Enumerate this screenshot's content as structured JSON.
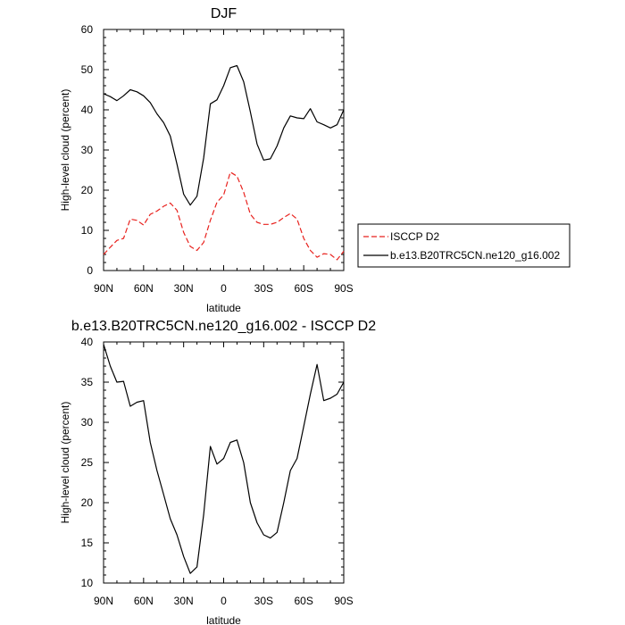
{
  "chart_data": [
    {
      "type": "line",
      "title": "DJF",
      "xlabel": "latitude",
      "ylabel": "High-level cloud (percent)",
      "xlim": [
        90,
        -90
      ],
      "ylim": [
        0,
        60
      ],
      "x_ticks": [
        90,
        60,
        30,
        0,
        -30,
        -60,
        -90
      ],
      "x_tick_labels": [
        "90N",
        "60N",
        "30N",
        "0",
        "30S",
        "60S",
        "90S"
      ],
      "y_ticks": [
        0,
        10,
        20,
        30,
        40,
        50,
        60
      ],
      "y_tick_labels": [
        "0",
        "10",
        "20",
        "30",
        "40",
        "50",
        "60"
      ],
      "grid": false,
      "legend_position": "outside-right",
      "series": [
        {
          "name": "ISCCP D2",
          "color": "#e8211d",
          "style": "dashed",
          "x": [
            90,
            85,
            80,
            75,
            70,
            65,
            60,
            55,
            50,
            45,
            40,
            35,
            30,
            25,
            20,
            15,
            10,
            5,
            0,
            -5,
            -10,
            -15,
            -20,
            -25,
            -30,
            -35,
            -40,
            -45,
            -50,
            -55,
            -60,
            -65,
            -70,
            -75,
            -80,
            -85,
            -90
          ],
          "y": [
            4,
            5.8,
            7.5,
            8,
            12.8,
            12.5,
            11.3,
            14,
            14.8,
            16,
            16.8,
            15,
            9.5,
            6,
            5,
            7,
            12.5,
            17,
            18.8,
            24.5,
            23.5,
            19.5,
            14,
            12,
            11.5,
            11.5,
            12,
            13.2,
            14.2,
            12.8,
            8,
            5,
            3.3,
            4.2,
            4,
            2.7,
            4.8
          ]
        },
        {
          "name": "b.e13.B20TRC5CN.ne120_g16.002",
          "color": "#000000",
          "style": "solid",
          "x": [
            90,
            85,
            80,
            75,
            70,
            65,
            60,
            55,
            50,
            45,
            40,
            35,
            30,
            25,
            20,
            15,
            10,
            5,
            0,
            -5,
            -10,
            -15,
            -20,
            -25,
            -30,
            -35,
            -40,
            -45,
            -50,
            -55,
            -60,
            -65,
            -70,
            -75,
            -80,
            -85,
            -90
          ],
          "y": [
            44,
            43.3,
            42.3,
            43.5,
            45,
            44.5,
            43.5,
            41.8,
            39,
            36.8,
            33.5,
            26.5,
            19,
            16.3,
            18.5,
            28,
            41.5,
            42.5,
            46,
            50.5,
            51,
            47,
            39.5,
            31.5,
            27.5,
            27.8,
            31,
            35.5,
            38.5,
            38,
            37.8,
            40.3,
            37,
            36.3,
            35.5,
            36.3,
            40
          ]
        }
      ]
    },
    {
      "type": "line",
      "title": "b.e13.B20TRC5CN.ne120_g16.002 - ISCCP D2",
      "xlabel": "latitude",
      "ylabel": "High-level cloud (percent)",
      "xlim": [
        90,
        -90
      ],
      "ylim": [
        10,
        40
      ],
      "x_ticks": [
        90,
        60,
        30,
        0,
        -30,
        -60,
        -90
      ],
      "x_tick_labels": [
        "90N",
        "60N",
        "30N",
        "0",
        "30S",
        "60S",
        "90S"
      ],
      "y_ticks": [
        10,
        15,
        20,
        25,
        30,
        35,
        40
      ],
      "y_tick_labels": [
        "10",
        "15",
        "20",
        "25",
        "30",
        "35",
        "40"
      ],
      "grid": false,
      "series": [
        {
          "color": "#000000",
          "style": "solid",
          "x": [
            90,
            85,
            80,
            75,
            70,
            65,
            60,
            55,
            50,
            45,
            40,
            35,
            30,
            25,
            20,
            15,
            10,
            5,
            0,
            -5,
            -10,
            -15,
            -20,
            -25,
            -30,
            -35,
            -40,
            -45,
            -50,
            -55,
            -60,
            -65,
            -70,
            -75,
            -80,
            -85,
            -90
          ],
          "y": [
            39.7,
            37,
            35,
            35.1,
            32,
            32.5,
            32.7,
            27.5,
            24,
            21,
            18,
            16,
            13.3,
            11.2,
            12,
            18.5,
            27,
            24.8,
            25.5,
            27.5,
            27.8,
            25,
            20,
            17.5,
            16,
            15.6,
            16.3,
            20,
            24,
            25.5,
            29.5,
            33.5,
            37.2,
            32.7,
            33,
            33.5,
            35
          ]
        }
      ]
    }
  ]
}
